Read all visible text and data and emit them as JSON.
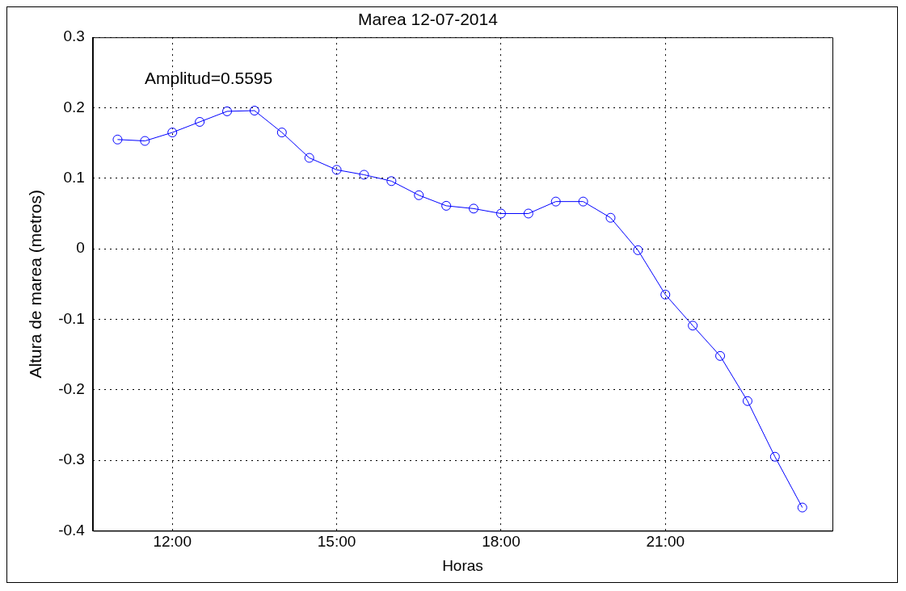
{
  "chart_data": {
    "type": "line",
    "title": "Marea 12-07-2014",
    "xlabel": "Horas",
    "ylabel": "Altura de marea (metros)",
    "annotations": [
      "Amplitud=0.5595"
    ],
    "x": [
      11,
      11.5,
      12,
      12.5,
      13,
      13.5,
      14,
      14.5,
      15,
      15.5,
      16,
      16.5,
      17,
      17.5,
      18,
      18.5,
      19,
      19.5,
      20,
      20.5,
      21,
      21.5,
      22,
      22.5,
      23,
      23.5
    ],
    "series": [
      {
        "color": "#0000ff",
        "values": [
          0.155,
          0.153,
          0.165,
          0.18,
          0.195,
          0.196,
          0.165,
          0.129,
          0.112,
          0.105,
          0.096,
          0.076,
          0.061,
          0.057,
          0.05,
          0.05,
          0.067,
          0.067,
          0.044,
          -0.002,
          -0.065,
          -0.109,
          -0.152,
          -0.216,
          -0.295,
          -0.367
        ]
      }
    ],
    "xlim": [
      10.55,
      24.05
    ],
    "xticks": [
      {
        "value": 12,
        "label": "12:00"
      },
      {
        "value": 15,
        "label": "15:00"
      },
      {
        "value": 18,
        "label": "18:00"
      },
      {
        "value": 21,
        "label": "21:00"
      }
    ],
    "ylim": [
      -0.4,
      0.3
    ],
    "yticks": [
      -0.4,
      -0.3,
      -0.2,
      -0.1,
      0,
      0.1,
      0.2,
      0.3
    ],
    "grid": true,
    "legend": false,
    "marker": "circle",
    "line_style": "solid"
  }
}
